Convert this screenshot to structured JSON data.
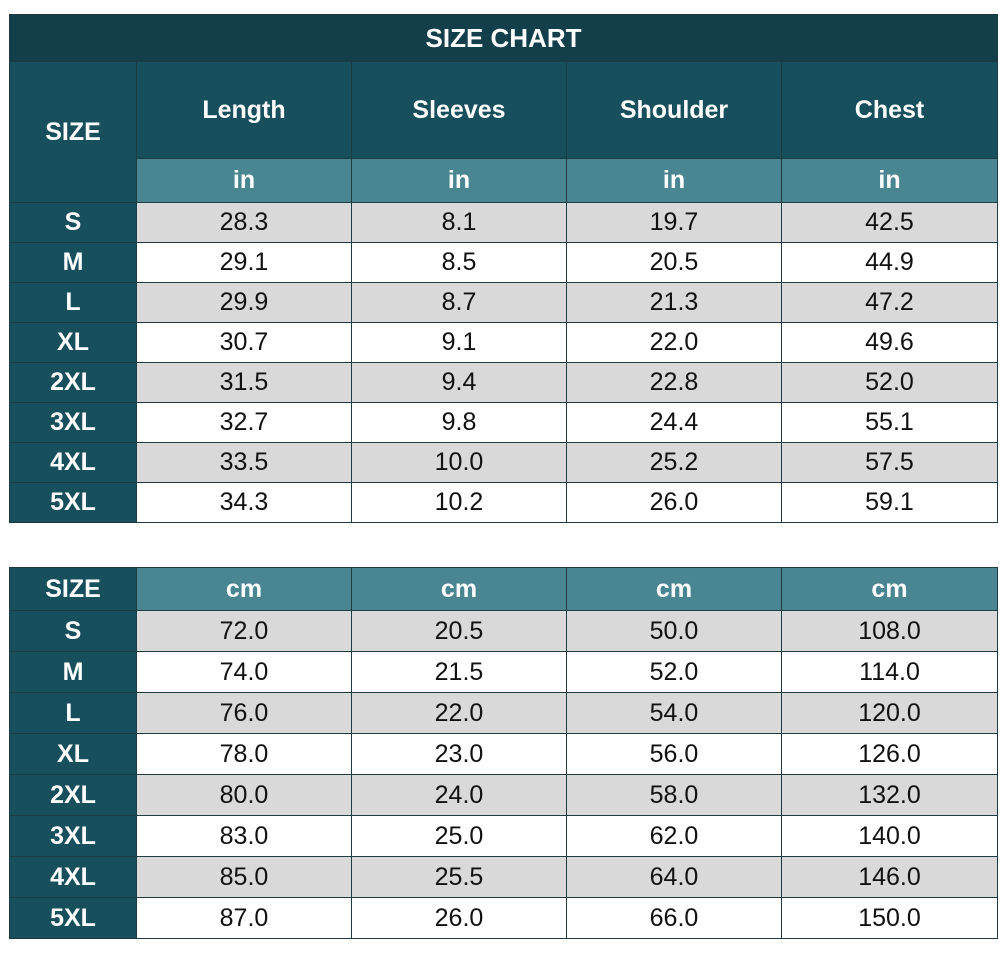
{
  "title": "SIZE CHART",
  "size_label": "SIZE",
  "columns": [
    "Length",
    "Sleeves",
    "Shoulder",
    "Chest"
  ],
  "units_in": [
    "in",
    "in",
    "in",
    "in"
  ],
  "units_cm": [
    "cm",
    "cm",
    "cm",
    "cm"
  ],
  "sizes": [
    "S",
    "M",
    "L",
    "XL",
    "2XL",
    "3XL",
    "4XL",
    "5XL"
  ],
  "inches": [
    [
      "28.3",
      "8.1",
      "19.7",
      "42.5"
    ],
    [
      "29.1",
      "8.5",
      "20.5",
      "44.9"
    ],
    [
      "29.9",
      "8.7",
      "21.3",
      "47.2"
    ],
    [
      "30.7",
      "9.1",
      "22.0",
      "49.6"
    ],
    [
      "31.5",
      "9.4",
      "22.8",
      "52.0"
    ],
    [
      "32.7",
      "9.8",
      "24.4",
      "55.1"
    ],
    [
      "33.5",
      "10.0",
      "25.2",
      "57.5"
    ],
    [
      "34.3",
      "10.2",
      "26.0",
      "59.1"
    ]
  ],
  "centimeters": [
    [
      "72.0",
      "20.5",
      "50.0",
      "108.0"
    ],
    [
      "74.0",
      "21.5",
      "52.0",
      "114.0"
    ],
    [
      "76.0",
      "22.0",
      "54.0",
      "120.0"
    ],
    [
      "78.0",
      "23.0",
      "56.0",
      "126.0"
    ],
    [
      "80.0",
      "24.0",
      "58.0",
      "132.0"
    ],
    [
      "83.0",
      "25.0",
      "62.0",
      "140.0"
    ],
    [
      "85.0",
      "25.5",
      "64.0",
      "146.0"
    ],
    [
      "87.0",
      "26.0",
      "66.0",
      "150.0"
    ]
  ]
}
